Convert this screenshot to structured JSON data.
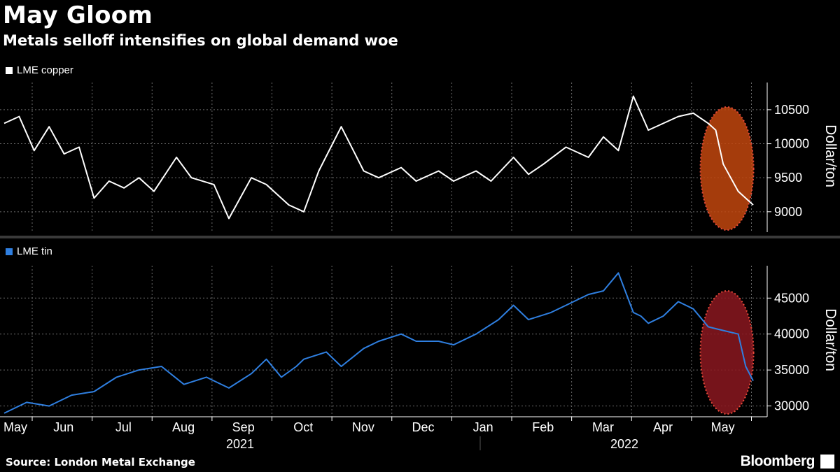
{
  "title": "May Gloom",
  "subtitle": "Metals selloff intensifies on global demand woe",
  "source": "Source: London Metal Exchange",
  "brand": "Bloomberg",
  "colors": {
    "copper": "#ffffff",
    "tin": "#2f7fe0",
    "copper_highlight": "#c2470e",
    "tin_highlight": "#8b1820",
    "highlight_border": "#e84a3a",
    "grid": "#6a6a6a"
  },
  "chart_data": [
    {
      "type": "line",
      "series": [
        {
          "name": "LME copper",
          "color": "#ffffff",
          "x": [
            0,
            0.02,
            0.04,
            0.06,
            0.08,
            0.1,
            0.12,
            0.14,
            0.16,
            0.18,
            0.2,
            0.23,
            0.25,
            0.28,
            0.3,
            0.33,
            0.35,
            0.38,
            0.4,
            0.42,
            0.45,
            0.48,
            0.5,
            0.53,
            0.55,
            0.58,
            0.6,
            0.63,
            0.65,
            0.68,
            0.7,
            0.72,
            0.75,
            0.78,
            0.8,
            0.82,
            0.84,
            0.86,
            0.88,
            0.9,
            0.92,
            0.94,
            0.95,
            0.96,
            0.97,
            0.98,
            0.99,
            1.0
          ],
          "values": [
            10300,
            10400,
            9900,
            10250,
            9850,
            9950,
            9200,
            9450,
            9350,
            9500,
            9300,
            9800,
            9500,
            9400,
            8900,
            9500,
            9400,
            9100,
            9000,
            9600,
            10250,
            9600,
            9500,
            9650,
            9450,
            9600,
            9450,
            9600,
            9450,
            9800,
            9550,
            9700,
            9950,
            9800,
            10100,
            9900,
            10700,
            10200,
            10300,
            10400,
            10450,
            10300,
            10200,
            9700,
            9500,
            9300,
            9200,
            9100
          ]
        }
      ],
      "ylabel": "Dollar/ton",
      "yticks": [
        9000,
        9500,
        10000,
        10500
      ],
      "ylim": [
        8700,
        10900
      ],
      "highlight": "May"
    },
    {
      "type": "line",
      "series": [
        {
          "name": "LME tin",
          "color": "#2f7fe0",
          "x": [
            0,
            0.03,
            0.06,
            0.09,
            0.12,
            0.15,
            0.18,
            0.21,
            0.24,
            0.27,
            0.28,
            0.3,
            0.33,
            0.35,
            0.37,
            0.39,
            0.4,
            0.43,
            0.45,
            0.48,
            0.5,
            0.53,
            0.55,
            0.58,
            0.6,
            0.63,
            0.66,
            0.68,
            0.7,
            0.73,
            0.75,
            0.78,
            0.8,
            0.82,
            0.84,
            0.85,
            0.86,
            0.88,
            0.9,
            0.92,
            0.94,
            0.96,
            0.98,
            0.99,
            1.0
          ],
          "values": [
            29000,
            30500,
            30000,
            31500,
            32000,
            34000,
            35000,
            35500,
            33000,
            34000,
            33500,
            32500,
            34500,
            36500,
            34000,
            35500,
            36500,
            37500,
            35500,
            38000,
            39000,
            40000,
            39000,
            39000,
            38500,
            40000,
            42000,
            44000,
            42000,
            43000,
            44000,
            45500,
            46000,
            48500,
            43000,
            42500,
            41500,
            42500,
            44500,
            43500,
            41000,
            40500,
            40000,
            35500,
            33500
          ]
        }
      ],
      "ylabel": "Dollar/ton",
      "yticks": [
        30000,
        35000,
        40000,
        45000
      ],
      "ylim": [
        28500,
        49500
      ],
      "highlight": "May"
    }
  ],
  "x_axis": {
    "months": [
      "May",
      "Jun",
      "Jul",
      "Aug",
      "Sep",
      "Oct",
      "Nov",
      "Dec",
      "Jan",
      "Feb",
      "Mar",
      "Apr",
      "May"
    ],
    "years": [
      "2021",
      "2022"
    ]
  }
}
